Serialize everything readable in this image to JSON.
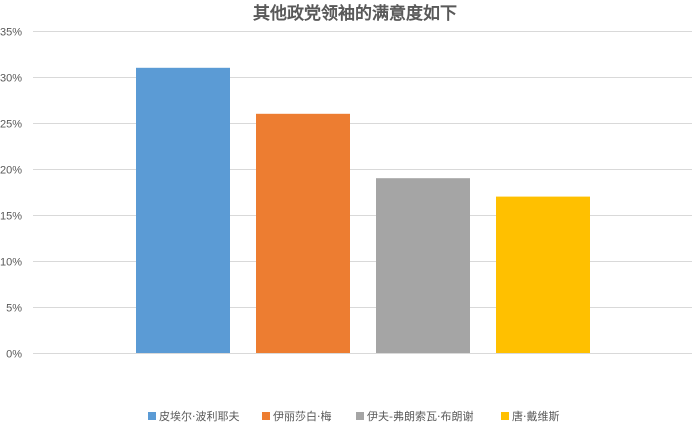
{
  "chart_data": {
    "type": "bar",
    "title": "其他政党领袖的满意度如下",
    "categories": [
      "皮埃尔·波利耶夫",
      "伊丽莎白·梅",
      "伊夫-弗朗索瓦·布朗谢",
      "唐·戴维斯"
    ],
    "values": [
      31,
      26,
      19,
      17
    ],
    "colors": [
      "#5b9bd5",
      "#ed7d31",
      "#a5a5a5",
      "#ffc000"
    ],
    "ylim": [
      0,
      35
    ],
    "yticks": [
      0,
      5,
      10,
      15,
      20,
      25,
      30,
      35
    ],
    "ytick_labels": [
      "0%",
      "5%",
      "10%",
      "15%",
      "20%",
      "25%",
      "30%",
      "35%"
    ],
    "grid": true,
    "legend_position": "bottom",
    "xlabel": "",
    "ylabel": ""
  }
}
